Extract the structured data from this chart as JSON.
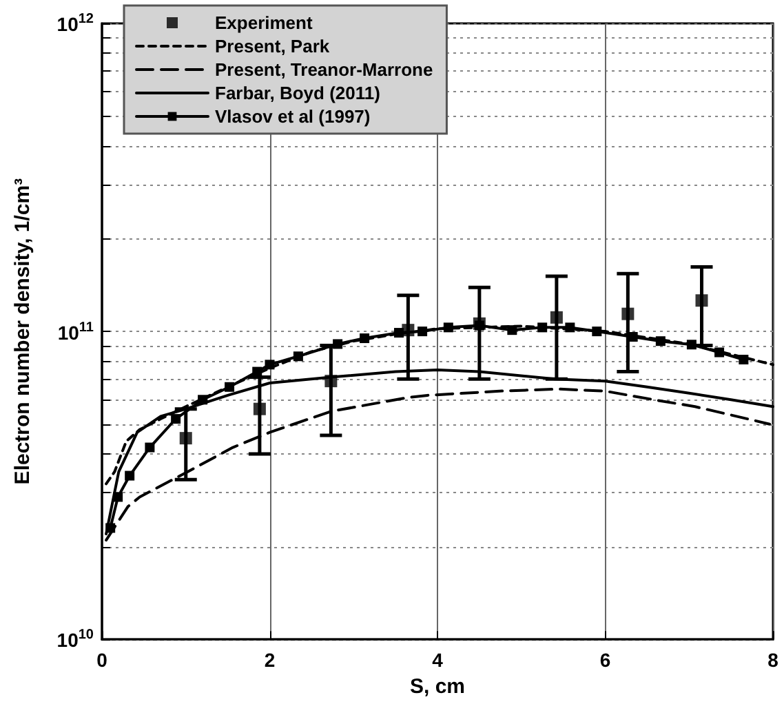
{
  "chart_data": {
    "type": "line",
    "xlabel": "S, cm",
    "ylabel": "Electron number density, 1/cm³",
    "log": "y",
    "grid": true,
    "legend": "top left",
    "xlim": [
      0,
      8
    ],
    "xticks": [
      0,
      2,
      4,
      6,
      8
    ],
    "ylim": [
      10000000000.0,
      1000000000000.0
    ],
    "yticks": [
      {
        "value": 10000000000.0,
        "label": "10$^{10}$"
      },
      {
        "value": 20000000000.0,
        "label": null
      },
      {
        "value": 30000000000.0,
        "label": null
      },
      {
        "value": 40000000000.0,
        "label": null
      },
      {
        "value": 50000000000.0,
        "label": null
      },
      {
        "value": 60000000000.0,
        "label": null
      },
      {
        "value": 70000000000.0,
        "label": null
      },
      {
        "value": 80000000000.0,
        "label": null
      },
      {
        "value": 90000000000.0,
        "label": null
      },
      {
        "value": 100000000000.0,
        "label": "10$^{11}$"
      },
      {
        "value": 200000000000.0,
        "label": null
      },
      {
        "value": 300000000000.0,
        "label": null
      },
      {
        "value": 400000000000.0,
        "label": null
      },
      {
        "value": 500000000000.0,
        "label": null
      },
      {
        "value": 600000000000.0,
        "label": null
      },
      {
        "value": 700000000000.0,
        "label": null
      },
      {
        "value": 800000000000.0,
        "label": null
      },
      {
        "value": 900000000000.0,
        "label": null
      },
      {
        "value": 1000000000000.0,
        "label": "10$^{12}$"
      }
    ],
    "series": [
      {
        "name": "Experiment",
        "type": "scatter",
        "marker": "square",
        "color": "#000000",
        "x": [
          1.0,
          1.88,
          2.73,
          3.65,
          4.5,
          5.42,
          6.27,
          7.15
        ],
        "values": [
          45000000000.0,
          56000000000.0,
          69000000000.0,
          101000000000.0,
          106000000000.0,
          111000000000.0,
          114000000000.0,
          126000000000.0
        ],
        "errors": [
          [
            33000000000.0,
            56000000000.0
          ],
          [
            40000000000.0,
            71000000000.0
          ],
          [
            46000000000.0,
            90000000000.0
          ],
          [
            70000000000.0,
            131000000000.0
          ],
          [
            70000000000.0,
            139000000000.0
          ],
          [
            70000000000.0,
            151000000000.0
          ],
          [
            74000000000.0,
            154000000000.0
          ],
          [
            90000000000.0,
            162000000000.0
          ]
        ]
      },
      {
        "name": "Present, Park",
        "type": "line",
        "line_style": "dotted",
        "marker": "none",
        "color": "#000000",
        "x": [
          0.05,
          0.15,
          0.29,
          0.45,
          0.7,
          1.0,
          1.5,
          2.0,
          2.5,
          3.0,
          3.5,
          4.0,
          5.0,
          6.0,
          7.0,
          8.0
        ],
        "values": [
          32000000000.0,
          35000000000.0,
          44000000000.0,
          48000000000.0,
          52000000000.0,
          57000000000.0,
          66000000000.0,
          76000000000.0,
          86000000000.0,
          93000000000.0,
          98000000000.0,
          102000000000.0,
          104000000000.0,
          100000000000.0,
          91000000000.0,
          78000000000.0
        ]
      },
      {
        "name": "Present, Treanor-Marrone",
        "type": "line",
        "line_style": "dashed",
        "marker": "none",
        "color": "#000000",
        "x": [
          0.05,
          0.31,
          0.45,
          1.02,
          1.56,
          2.0,
          2.73,
          3.65,
          3.88,
          4.74,
          5.45,
          6.0,
          6.58,
          7.07,
          7.44,
          7.96
        ],
        "values": [
          21000000000.0,
          27000000000.0,
          29000000000.0,
          35000000000.0,
          42000000000.0,
          47000000000.0,
          55000000000.0,
          61000000000.0,
          62000000000.0,
          64000000000.0,
          65000000000.0,
          64000000000.0,
          60000000000.0,
          57000000000.0,
          54000000000.0,
          50000000000.0
        ]
      },
      {
        "name": "Farbar, Boyd (2011)",
        "type": "line",
        "line_style": "solid",
        "marker": "none",
        "color": "#000000",
        "x": [
          0.05,
          0.2,
          0.42,
          0.7,
          1.0,
          1.5,
          2.0,
          2.73,
          3.5,
          4.0,
          4.5,
          5.4,
          6.0,
          6.5,
          7.0,
          7.5,
          8.0
        ],
        "values": [
          22000000000.0,
          35000000000.0,
          47000000000.0,
          53000000000.0,
          56000000000.0,
          62000000000.0,
          68000000000.0,
          71000000000.0,
          74000000000.0,
          75000000000.0,
          74000000000.0,
          70000000000.0,
          69000000000.0,
          66000000000.0,
          63000000000.0,
          60000000000.0,
          57000000000.0
        ]
      },
      {
        "name": "Vlasov et al (1997)",
        "type": "line",
        "line_style": "solid",
        "marker": "square",
        "color": "#000000",
        "x": [
          0.1,
          0.19,
          0.33,
          0.57,
          0.88,
          1.2,
          1.52,
          1.85,
          2.0,
          2.34,
          2.81,
          3.13,
          3.54,
          3.82,
          4.13,
          4.5,
          4.89,
          5.25,
          5.58,
          5.9,
          6.33,
          6.66,
          7.03,
          7.36,
          7.65
        ],
        "values": [
          23000000000.0,
          29000000000.0,
          34000000000.0,
          42000000000.0,
          52000000000.0,
          60000000000.0,
          66000000000.0,
          74000000000.0,
          78000000000.0,
          83000000000.0,
          91000000000.0,
          95000000000.0,
          99000000000.0,
          100000000000.0,
          103000000000.0,
          104500000000.0,
          101000000000.0,
          103000000000.0,
          103000000000.0,
          100000000000.0,
          96000000000.0,
          93000000000.0,
          90600000000.0,
          85500000000.0,
          81000000000.0
        ]
      }
    ]
  }
}
